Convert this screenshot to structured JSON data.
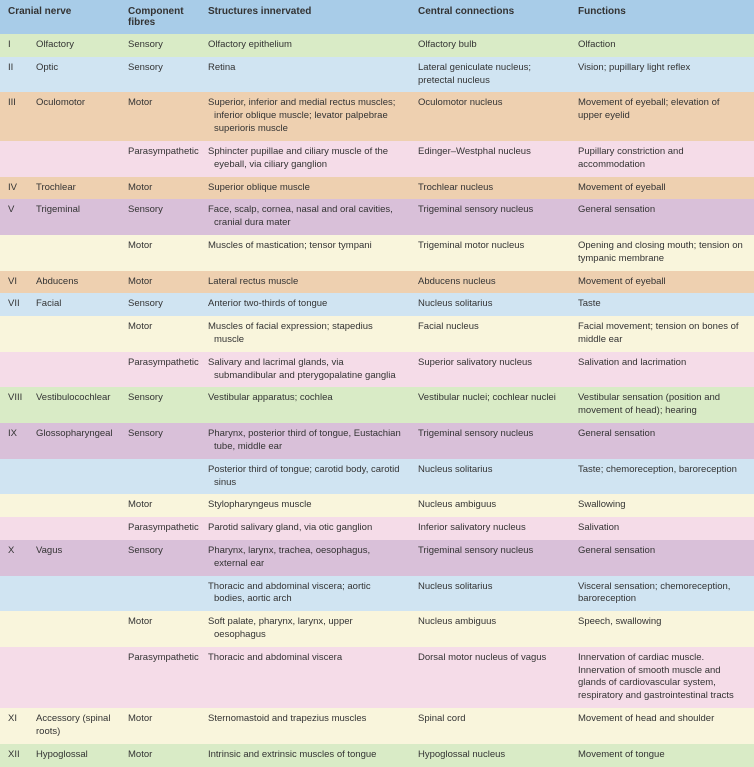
{
  "headers": {
    "nerve": "Cranial nerve",
    "fibres": "Component fibres",
    "structures": "Structures innervated",
    "connections": "Central connections",
    "functions": "Functions"
  },
  "colors": {
    "header_bg": "#a8cce8",
    "green": "#d9ebc6",
    "blue": "#d0e4f2",
    "orange": "#eed0b0",
    "pink": "#f5dce8",
    "purple": "#d9c0d9",
    "cream": "#f9f5dc"
  },
  "rows": [
    {
      "color": "green",
      "num": "I",
      "nerve": "Olfactory",
      "fibres": "Sensory",
      "struct": "Olfactory epithelium",
      "conn": "Olfactory bulb",
      "func": "Olfaction"
    },
    {
      "color": "blue",
      "num": "II",
      "nerve": "Optic",
      "fibres": "Sensory",
      "struct": "Retina",
      "conn": "Lateral geniculate nucleus; pretectal nucleus",
      "func": "Vision; pupillary light reflex"
    },
    {
      "color": "orange",
      "num": "III",
      "nerve": "Oculomotor",
      "fibres": "Motor",
      "struct": "Superior, inferior and medial rectus muscles; inferior oblique muscle; levator palpebrae superioris muscle",
      "conn": "Oculomotor nucleus",
      "func": "Movement of eyeball; elevation of upper eyelid"
    },
    {
      "color": "pink",
      "num": "",
      "nerve": "",
      "fibres": "Parasympathetic",
      "struct": "Sphincter pupillae and ciliary muscle of the eyeball, via ciliary ganglion",
      "conn": "Edinger–Westphal nucleus",
      "func": "Pupillary constriction and accommodation"
    },
    {
      "color": "orange",
      "num": "IV",
      "nerve": "Trochlear",
      "fibres": "Motor",
      "struct": "Superior oblique muscle",
      "conn": "Trochlear nucleus",
      "func": "Movement of eyeball"
    },
    {
      "color": "purple",
      "num": "V",
      "nerve": "Trigeminal",
      "fibres": "Sensory",
      "struct": "Face, scalp, cornea, nasal and oral cavities, cranial dura mater",
      "conn": "Trigeminal sensory nucleus",
      "func": "General sensation"
    },
    {
      "color": "cream",
      "num": "",
      "nerve": "",
      "fibres": "Motor",
      "struct": "Muscles of mastication; tensor tympani",
      "conn": "Trigeminal motor nucleus",
      "func": "Opening and closing mouth; tension on tympanic membrane"
    },
    {
      "color": "orange",
      "num": "VI",
      "nerve": "Abducens",
      "fibres": "Motor",
      "struct": "Lateral rectus muscle",
      "conn": "Abducens nucleus",
      "func": "Movement of eyeball"
    },
    {
      "color": "blue",
      "num": "VII",
      "nerve": "Facial",
      "fibres": "Sensory",
      "struct": "Anterior two-thirds of tongue",
      "conn": "Nucleus solitarius",
      "func": "Taste"
    },
    {
      "color": "cream",
      "num": "",
      "nerve": "",
      "fibres": "Motor",
      "struct": "Muscles of facial expression; stapedius muscle",
      "conn": "Facial nucleus",
      "func": "Facial movement; tension on bones of middle ear"
    },
    {
      "color": "pink",
      "num": "",
      "nerve": "",
      "fibres": "Parasympathetic",
      "struct": "Salivary and lacrimal glands, via submandibular and pterygopalatine ganglia",
      "conn": "Superior salivatory nucleus",
      "func": "Salivation and lacrimation"
    },
    {
      "color": "green",
      "num": "VIII",
      "nerve": "Vestibulocochlear",
      "fibres": "Sensory",
      "struct": "Vestibular apparatus; cochlea",
      "conn": "Vestibular nuclei; cochlear nuclei",
      "func": "Vestibular sensation (position and movement of head); hearing"
    },
    {
      "color": "purple",
      "num": "IX",
      "nerve": "Glossopharyngeal",
      "fibres": "Sensory",
      "struct": "Pharynx, posterior third of tongue, Eustachian tube, middle ear",
      "conn": "Trigeminal sensory nucleus",
      "func": "General sensation"
    },
    {
      "color": "blue",
      "num": "",
      "nerve": "",
      "fibres": "",
      "struct": "Posterior third of tongue; carotid body, carotid sinus",
      "conn": "Nucleus solitarius",
      "func": "Taste; chemoreception, baroreception"
    },
    {
      "color": "cream",
      "num": "",
      "nerve": "",
      "fibres": "Motor",
      "struct": "Stylopharyngeus muscle",
      "conn": "Nucleus ambiguus",
      "func": "Swallowing"
    },
    {
      "color": "pink",
      "num": "",
      "nerve": "",
      "fibres": "Parasympathetic",
      "struct": "Parotid salivary gland, via otic ganglion",
      "conn": "Inferior salivatory nucleus",
      "func": "Salivation"
    },
    {
      "color": "purple",
      "num": "X",
      "nerve": "Vagus",
      "fibres": "Sensory",
      "struct": "Pharynx, larynx, trachea, oesophagus, external ear",
      "conn": "Trigeminal sensory nucleus",
      "func": "General sensation"
    },
    {
      "color": "blue",
      "num": "",
      "nerve": "",
      "fibres": "",
      "struct": "Thoracic and abdominal viscera; aortic bodies, aortic arch",
      "conn": "Nucleus solitarius",
      "func": "Visceral sensation; chemoreception, baroreception"
    },
    {
      "color": "cream",
      "num": "",
      "nerve": "",
      "fibres": "Motor",
      "struct": "Soft palate, pharynx, larynx, upper oesophagus",
      "conn": "Nucleus ambiguus",
      "func": "Speech, swallowing"
    },
    {
      "color": "pink",
      "num": "",
      "nerve": "",
      "fibres": "Parasympathetic",
      "struct": "Thoracic and abdominal viscera",
      "conn": "Dorsal motor nucleus of vagus",
      "func": "Innervation of cardiac muscle. Innervation of smooth muscle and glands of cardiovascular system, respiratory and gastrointestinal tracts"
    },
    {
      "color": "cream",
      "num": "XI",
      "nerve": "Accessory (spinal roots)",
      "fibres": "Motor",
      "struct": "Sternomastoid and trapezius muscles",
      "conn": "Spinal cord",
      "func": "Movement of head and shoulder"
    },
    {
      "color": "green",
      "num": "XII",
      "nerve": "Hypoglossal",
      "fibres": "Motor",
      "struct": "Intrinsic and extrinsic muscles of tongue",
      "conn": "Hypoglossal nucleus",
      "func": "Movement of tongue"
    }
  ]
}
